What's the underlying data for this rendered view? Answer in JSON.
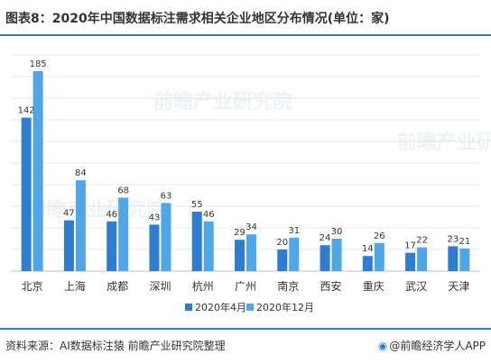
{
  "title": "图表8：2020年中国数据标注需求相关企业地区分布情况(单位：家)",
  "source": "资料来源：AI数据标注猿 前瞻产业研究院整理",
  "brand": "@前瞻经济学人APP",
  "watermark": "前瞻产业研究院",
  "colors": {
    "apr": "#2e7dd3",
    "dec": "#4fa6e8",
    "accent": "#2e7dd3"
  },
  "chart_data": {
    "type": "bar",
    "categories": [
      "北京",
      "上海",
      "成都",
      "深圳",
      "杭州",
      "广州",
      "南京",
      "西安",
      "重庆",
      "武汉",
      "天津"
    ],
    "series": [
      {
        "name": "2020年4月",
        "values": [
          142,
          47,
          46,
          43,
          55,
          29,
          20,
          24,
          14,
          17,
          23
        ]
      },
      {
        "name": "2020年12月",
        "values": [
          185,
          84,
          68,
          63,
          46,
          34,
          31,
          30,
          26,
          22,
          21
        ]
      }
    ],
    "ylim": [
      0,
      200
    ],
    "grid": true,
    "legend_position": "bottom"
  }
}
